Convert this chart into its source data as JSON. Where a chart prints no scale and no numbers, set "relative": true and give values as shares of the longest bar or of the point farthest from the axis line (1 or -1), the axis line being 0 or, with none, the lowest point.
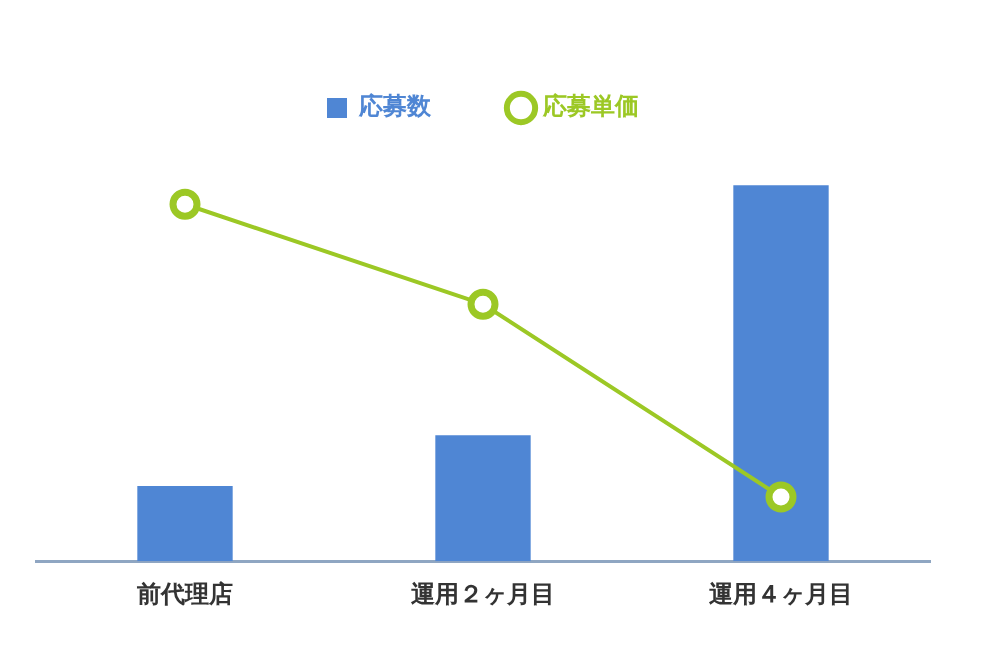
{
  "chart_data": {
    "type": "bar",
    "relative": true,
    "categories": [
      "前代理店",
      "運用２ヶ月目",
      "運用４ヶ月目"
    ],
    "series": [
      {
        "name": "応募数",
        "color": "#4f86d4",
        "values": [
          0.2,
          0.335,
          1
        ]
      },
      {
        "name": "応募単価",
        "type": "line",
        "axis": "y2",
        "color": "#9cc825",
        "values": [
          1,
          0.72,
          0.18
        ]
      }
    ],
    "legend": "top",
    "marker": "circle"
  }
}
